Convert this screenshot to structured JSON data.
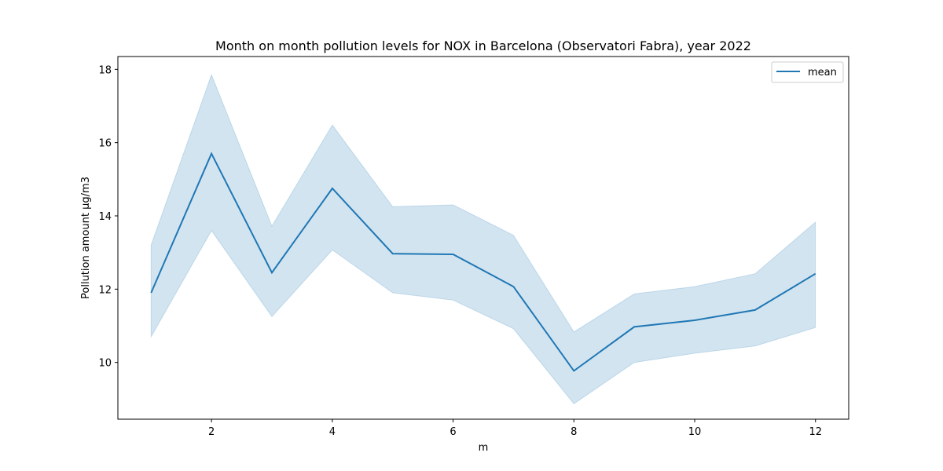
{
  "chart_data": {
    "type": "line",
    "title": "Month on month pollution levels for NOX in Barcelona (Observatori Fabra), year 2022",
    "xlabel": "m",
    "ylabel": "Pollution amount μg/m3",
    "xlim": [
      0.45,
      12.55
    ],
    "ylim": [
      8.45,
      18.35
    ],
    "xticks": [
      2,
      4,
      6,
      8,
      10,
      12
    ],
    "yticks": [
      10,
      12,
      14,
      16,
      18
    ],
    "grid": false,
    "legend": "top-right",
    "colors": {
      "line": "#1f77b4",
      "band": "#1f77b4"
    },
    "x": [
      1,
      2,
      3,
      4,
      5,
      6,
      7,
      8,
      9,
      10,
      11,
      12
    ],
    "series": [
      {
        "name": "mean",
        "values": [
          11.9,
          15.7,
          12.45,
          14.75,
          12.97,
          12.95,
          12.07,
          9.77,
          10.97,
          11.15,
          11.43,
          12.42
        ],
        "lower": [
          10.7,
          13.6,
          11.25,
          13.07,
          11.9,
          11.7,
          10.92,
          8.87,
          10.0,
          10.25,
          10.45,
          10.95
        ],
        "upper": [
          13.2,
          17.85,
          13.72,
          16.48,
          14.25,
          14.3,
          13.47,
          10.83,
          11.87,
          12.07,
          12.42,
          13.83
        ]
      }
    ]
  }
}
